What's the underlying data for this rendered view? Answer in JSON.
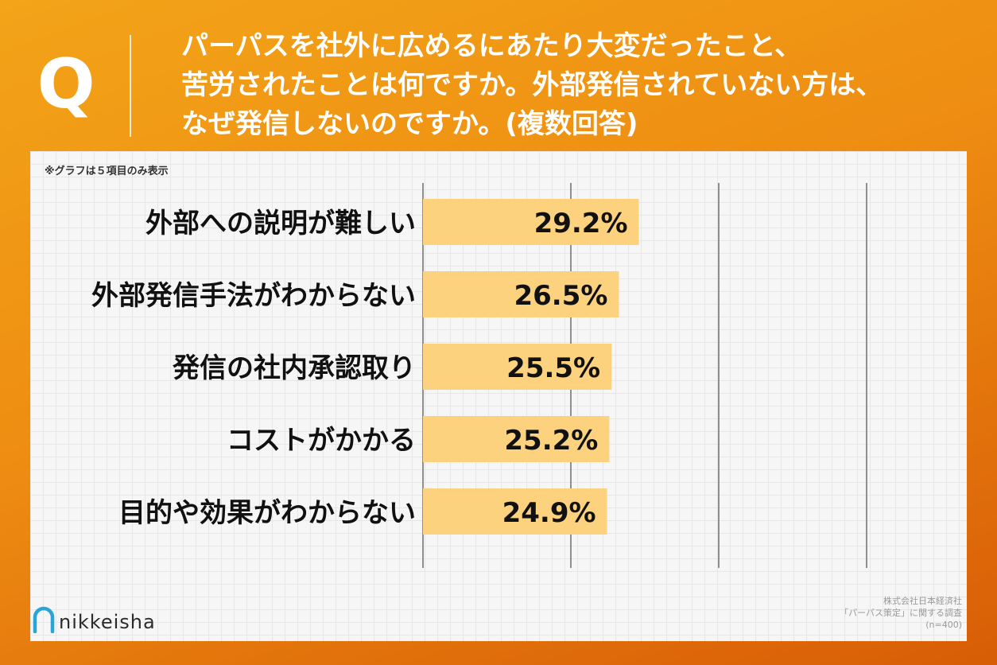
{
  "header": {
    "q_label": "Q",
    "question_lines": [
      "パーパスを社外に広めるにあたり大変だったこと、",
      "苦労されたことは何ですか。外部発信されていない方は、",
      "なぜ発信しないのですか。(複数回答)"
    ]
  },
  "note": "※グラフは５項目のみ表示",
  "chart_data": {
    "type": "bar",
    "orientation": "horizontal",
    "categories": [
      "外部への説明が難しい",
      "外部発信手法がわからない",
      "発信の社内承認取り",
      "コストがかかる",
      "目的や効果がわからない"
    ],
    "values": [
      29.2,
      26.5,
      25.5,
      25.2,
      24.9
    ],
    "value_labels": [
      "29.2%",
      "26.5%",
      "25.5%",
      "25.2%",
      "24.9%"
    ],
    "xlim": [
      0,
      60
    ],
    "grid_values": [
      0,
      20,
      40,
      60
    ],
    "grid": true,
    "bar_color": "#fdd27f"
  },
  "footer": {
    "logo_text": "nikkeisha",
    "source_lines": [
      "株式会社日本経済社",
      "「パーパス策定」に関する調査",
      "(n=400)"
    ]
  },
  "colors": {
    "background_gradient": [
      "#f3a418",
      "#d85d06"
    ],
    "panel": "#f6f6f6",
    "bar": "#fdd27f",
    "logo_accent": "#2aa5d8"
  }
}
